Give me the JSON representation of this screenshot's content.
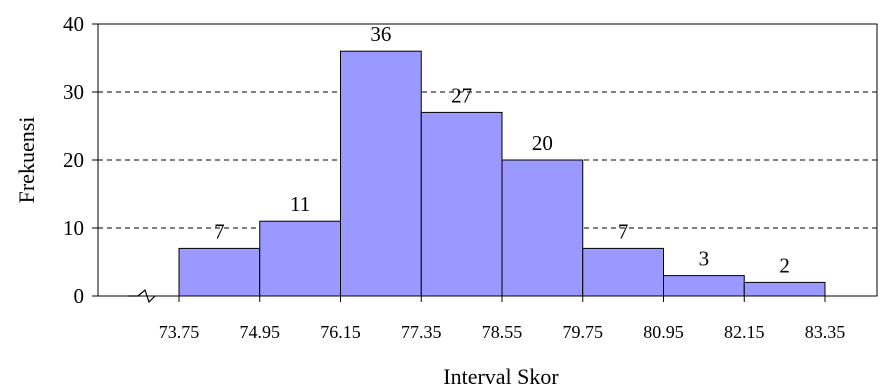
{
  "chart_data": {
    "type": "bar",
    "bin_edges": [
      "73.75",
      "74.95",
      "76.15",
      "77.35",
      "78.55",
      "79.75",
      "80.95",
      "82.15",
      "83.35"
    ],
    "values": [
      7,
      11,
      36,
      27,
      20,
      7,
      3,
      2
    ],
    "xlabel": "Interval Skor",
    "ylabel": "Frekuensi",
    "ylim": [
      0,
      40
    ],
    "yticks": [
      "0",
      "10",
      "20",
      "30",
      "40"
    ],
    "grid": "horizontal dashed",
    "axis_break": true,
    "colors": {
      "bar_fill": "#9999ff",
      "bar_stroke": "#000000"
    }
  }
}
